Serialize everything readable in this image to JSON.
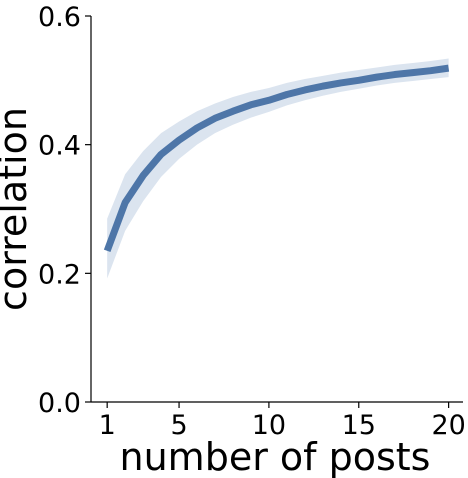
{
  "chart_data": {
    "type": "line",
    "xlabel": "number of posts",
    "ylabel": "correlation",
    "xlim": [
      0.1,
      20.8
    ],
    "ylim": [
      0.0,
      0.6
    ],
    "grid": false,
    "x_ticks": [
      1,
      5,
      10,
      15,
      20
    ],
    "x_tick_labels": [
      "1",
      "5",
      "10",
      "15",
      "20"
    ],
    "y_ticks": [
      0.0,
      0.2,
      0.4,
      0.6
    ],
    "y_tick_labels": [
      "0.0",
      "0.2",
      "0.4",
      "0.6"
    ],
    "colors": {
      "line": "#4e76a8",
      "band": "#dbe4ef"
    },
    "series": [
      {
        "x": [
          1,
          2,
          3,
          4,
          5,
          6,
          7,
          8,
          9,
          10,
          11,
          12,
          13,
          14,
          15,
          16,
          17,
          18,
          19,
          20
        ],
        "y": [
          0.235,
          0.31,
          0.352,
          0.385,
          0.407,
          0.426,
          0.441,
          0.452,
          0.462,
          0.469,
          0.478,
          0.485,
          0.491,
          0.496,
          0.5,
          0.505,
          0.509,
          0.512,
          0.515,
          0.519
        ],
        "lower": [
          0.192,
          0.266,
          0.312,
          0.35,
          0.378,
          0.4,
          0.418,
          0.431,
          0.442,
          0.451,
          0.461,
          0.469,
          0.476,
          0.482,
          0.487,
          0.492,
          0.496,
          0.499,
          0.502,
          0.505
        ],
        "upper": [
          0.285,
          0.354,
          0.39,
          0.418,
          0.436,
          0.452,
          0.464,
          0.474,
          0.482,
          0.488,
          0.496,
          0.502,
          0.507,
          0.512,
          0.516,
          0.52,
          0.524,
          0.527,
          0.53,
          0.534
        ]
      }
    ]
  }
}
